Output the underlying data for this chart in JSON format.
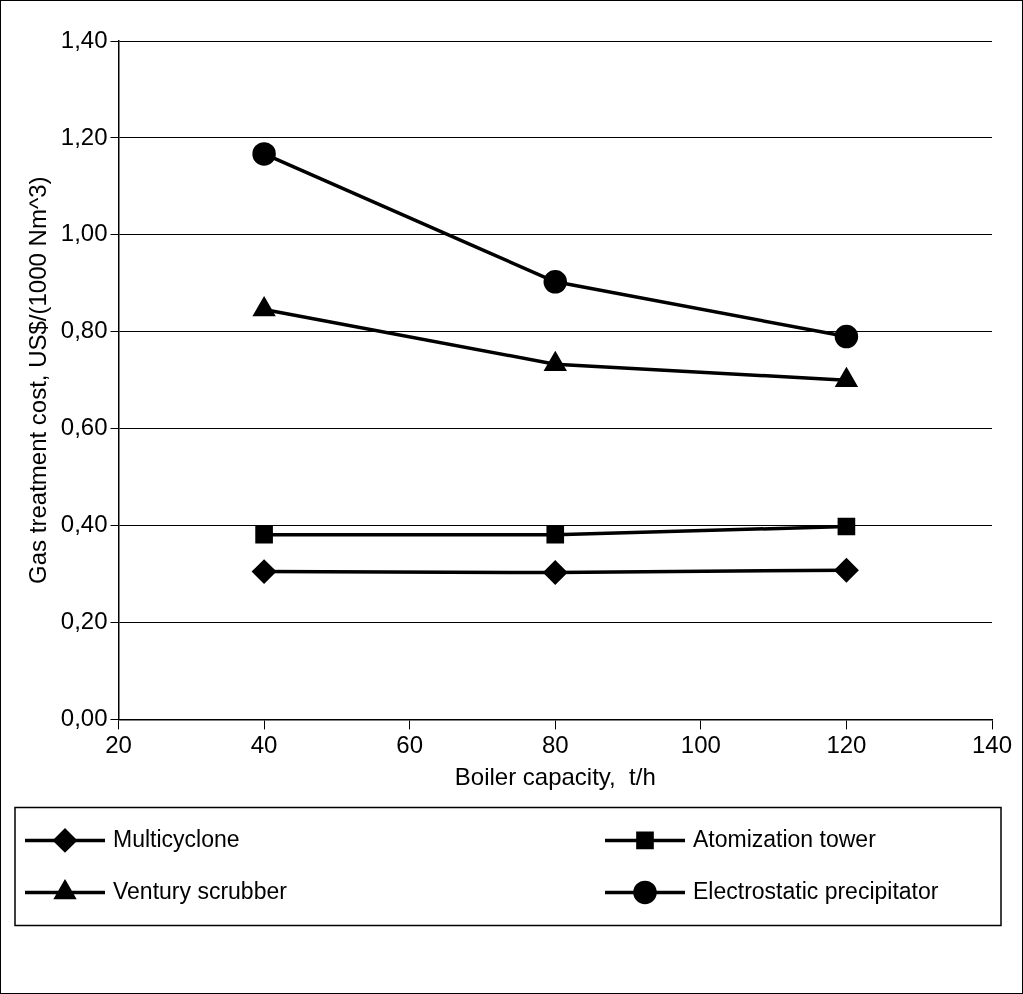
{
  "chart_data": {
    "type": "line",
    "xlabel": "Boiler capacity,  t/h",
    "ylabel": "Gas treatment cost, US$/(1000 Nm^3)",
    "x": [
      40,
      80,
      120
    ],
    "series": [
      {
        "name": "Multicyclone",
        "color": "#000000",
        "marker": "diamond",
        "values": [
          0.305,
          0.303,
          0.308
        ]
      },
      {
        "name": "Atomization tower",
        "color": "#000000",
        "marker": "square",
        "values": [
          0.381,
          0.381,
          0.398
        ]
      },
      {
        "name": "Ventury scrubber",
        "color": "#000000",
        "marker": "triangle",
        "values": [
          0.846,
          0.733,
          0.7
        ]
      },
      {
        "name": "Electrostatic precipitator",
        "color": "#000000",
        "marker": "circle",
        "values": [
          1.167,
          0.903,
          0.79
        ]
      }
    ],
    "xlim": [
      20,
      140
    ],
    "xticks": [
      20,
      40,
      60,
      80,
      100,
      120,
      140
    ],
    "ylim": [
      0,
      1.4
    ],
    "yticks": [
      {
        "value": 0,
        "label": "0,00"
      },
      {
        "value": 0.2,
        "label": "0,20"
      },
      {
        "value": 0.4,
        "label": "0,40"
      },
      {
        "value": 0.6,
        "label": "0,60"
      },
      {
        "value": 0.8,
        "label": "0,80"
      },
      {
        "value": 1.0,
        "label": "1,00"
      },
      {
        "value": 1.2,
        "label": "1,20"
      },
      {
        "value": 1.4,
        "label": "1,40"
      }
    ],
    "grid": "y",
    "legend": "bottom",
    "line_style": "solid"
  }
}
